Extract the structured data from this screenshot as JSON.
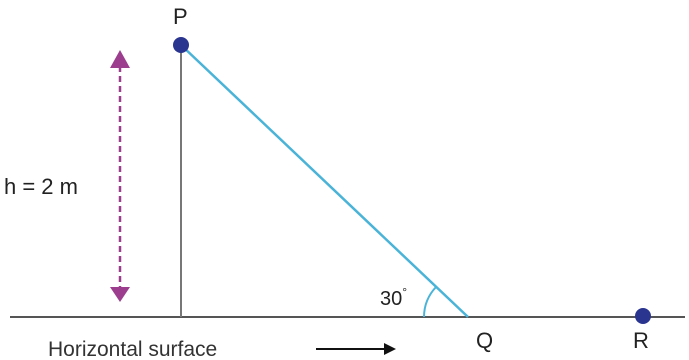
{
  "labels": {
    "point_p": "P",
    "point_q": "Q",
    "point_r": "R",
    "height": "h = 2 m",
    "angle": "30",
    "angle_unit": "°",
    "surface": "Horizontal surface"
  },
  "colors": {
    "incline": "#4ab3d8",
    "height_arrow": "#9c3d8e",
    "points": "#2a3590",
    "lines": "#555555"
  }
}
